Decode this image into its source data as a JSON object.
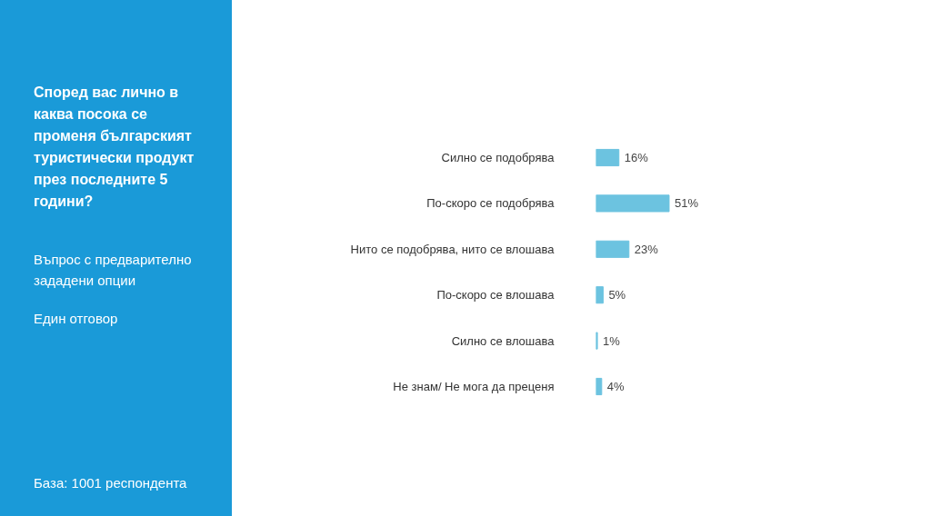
{
  "chart_data": {
    "type": "bar",
    "orientation": "horizontal",
    "title": "Според вас лично в каква посока се променя българският туристически продукт през последните 5 години?",
    "subtitle": "Въпрос с предварително зададени опции",
    "annotations": [
      "Един отговор",
      "База:  1001 респондента"
    ],
    "categories": [
      "Силно се подобрява",
      "По-скоро се подобрява",
      "Нито се подобрява, нито се влошава",
      "По-скоро се влошава",
      "Силно се влошава",
      "Не знам/ Не мога да преценя"
    ],
    "values": [
      16,
      51,
      23,
      5,
      1,
      4
    ],
    "value_labels": [
      "16%",
      "51%",
      "23%",
      "5%",
      "1%",
      "4%"
    ],
    "color": "#6cc3e0"
  }
}
